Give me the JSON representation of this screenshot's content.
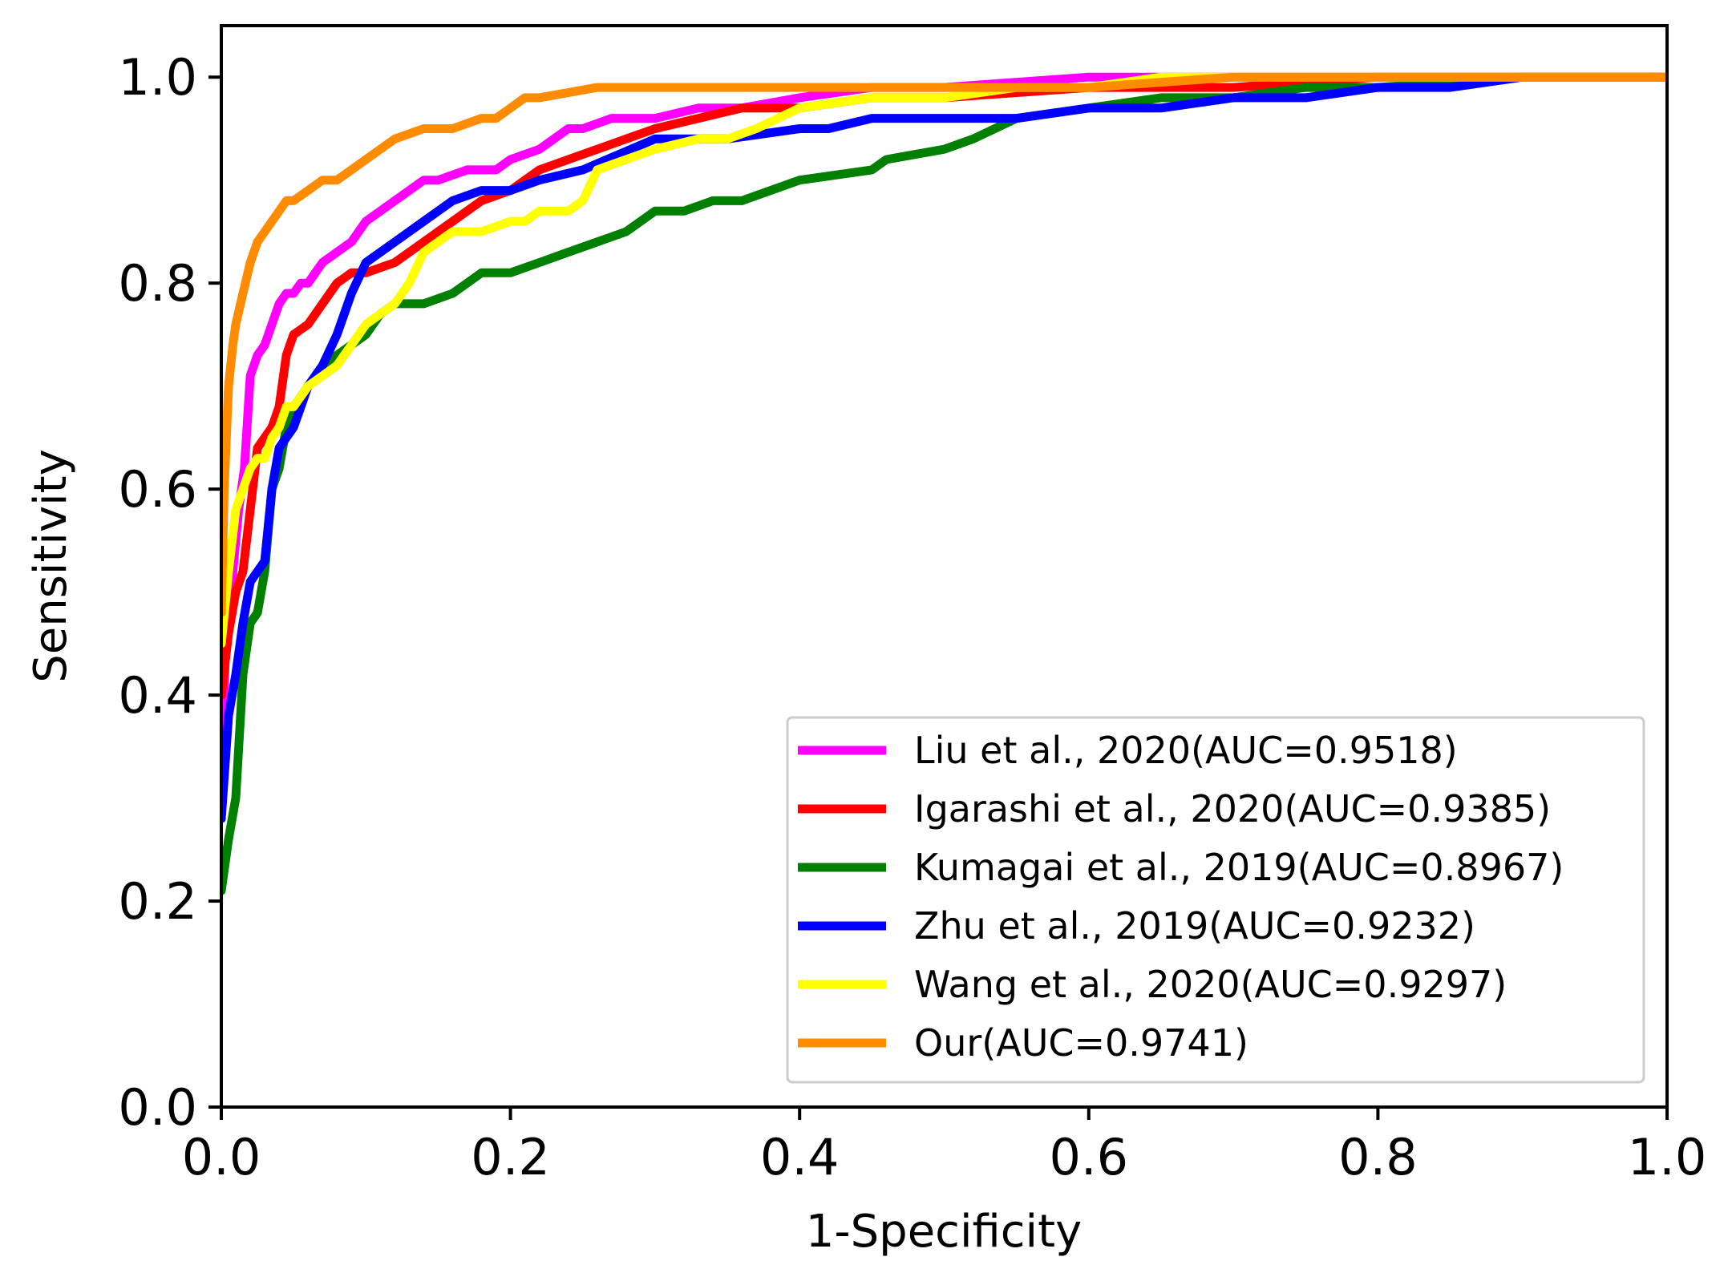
{
  "chart_data": {
    "type": "line",
    "title": "",
    "xlabel": "1-Specificity",
    "ylabel": "Sensitivity",
    "xlim": [
      0,
      1
    ],
    "ylim": [
      0,
      1.05
    ],
    "xticks": [
      "0.0",
      "0.2",
      "0.4",
      "0.6",
      "0.8",
      "1.0"
    ],
    "yticks": [
      "0.0",
      "0.2",
      "0.4",
      "0.6",
      "0.8",
      "1.0"
    ],
    "xtick_values": [
      0,
      0.2,
      0.4,
      0.6,
      0.8,
      1.0
    ],
    "ytick_values": [
      0,
      0.2,
      0.4,
      0.6,
      0.8,
      1.0
    ],
    "grid": false,
    "legend_position": "lower-right",
    "series": [
      {
        "name": "Liu et al., 2020(AUC=0.9518)",
        "color": "#ff00ff",
        "x": [
          0,
          0.003,
          0.008,
          0.012,
          0.016,
          0.02,
          0.025,
          0.03,
          0.035,
          0.04,
          0.045,
          0.05,
          0.055,
          0.06,
          0.065,
          0.07,
          0.08,
          0.09,
          0.1,
          0.11,
          0.12,
          0.13,
          0.14,
          0.15,
          0.17,
          0.19,
          0.2,
          0.22,
          0.24,
          0.25,
          0.27,
          0.3,
          0.33,
          0.36,
          0.4,
          0.45,
          0.5,
          0.6,
          0.65,
          0.7,
          0.8,
          0.9,
          1.0
        ],
        "y": [
          0.3,
          0.45,
          0.52,
          0.58,
          0.62,
          0.71,
          0.73,
          0.74,
          0.76,
          0.78,
          0.79,
          0.79,
          0.8,
          0.8,
          0.81,
          0.82,
          0.83,
          0.84,
          0.86,
          0.87,
          0.88,
          0.89,
          0.9,
          0.9,
          0.91,
          0.91,
          0.92,
          0.93,
          0.95,
          0.95,
          0.96,
          0.96,
          0.97,
          0.97,
          0.98,
          0.99,
          0.99,
          1.0,
          1.0,
          1.0,
          1.0,
          1.0,
          1.0
        ]
      },
      {
        "name": "Igarashi et al., 2020(AUC=0.9385)",
        "color": "#ff0000",
        "x": [
          0,
          0.005,
          0.01,
          0.015,
          0.02,
          0.025,
          0.03,
          0.035,
          0.04,
          0.045,
          0.05,
          0.06,
          0.07,
          0.08,
          0.09,
          0.1,
          0.12,
          0.14,
          0.16,
          0.18,
          0.2,
          0.22,
          0.24,
          0.26,
          0.28,
          0.3,
          0.33,
          0.36,
          0.4,
          0.45,
          0.5,
          0.6,
          0.7,
          0.8,
          0.9,
          1.0
        ],
        "y": [
          0.4,
          0.46,
          0.5,
          0.52,
          0.58,
          0.64,
          0.65,
          0.66,
          0.68,
          0.73,
          0.75,
          0.76,
          0.78,
          0.8,
          0.81,
          0.81,
          0.82,
          0.84,
          0.86,
          0.88,
          0.89,
          0.91,
          0.92,
          0.93,
          0.94,
          0.95,
          0.96,
          0.97,
          0.97,
          0.98,
          0.98,
          0.99,
          0.99,
          1.0,
          1.0,
          1.0
        ]
      },
      {
        "name": "Kumagai et al., 2019(AUC=0.8967)",
        "color": "#008000",
        "x": [
          0,
          0.005,
          0.01,
          0.015,
          0.02,
          0.025,
          0.03,
          0.035,
          0.04,
          0.045,
          0.05,
          0.06,
          0.07,
          0.08,
          0.09,
          0.1,
          0.11,
          0.12,
          0.14,
          0.16,
          0.17,
          0.18,
          0.2,
          0.22,
          0.24,
          0.26,
          0.28,
          0.3,
          0.32,
          0.34,
          0.36,
          0.38,
          0.4,
          0.45,
          0.46,
          0.5,
          0.52,
          0.55,
          0.6,
          0.65,
          0.7,
          0.75,
          0.8,
          0.9,
          1.0
        ],
        "y": [
          0.21,
          0.26,
          0.3,
          0.42,
          0.47,
          0.48,
          0.52,
          0.6,
          0.62,
          0.66,
          0.68,
          0.7,
          0.72,
          0.73,
          0.74,
          0.75,
          0.77,
          0.78,
          0.78,
          0.79,
          0.8,
          0.81,
          0.81,
          0.82,
          0.83,
          0.84,
          0.85,
          0.87,
          0.87,
          0.88,
          0.88,
          0.89,
          0.9,
          0.91,
          0.92,
          0.93,
          0.94,
          0.96,
          0.97,
          0.98,
          0.98,
          0.99,
          0.99,
          1.0,
          1.0
        ]
      },
      {
        "name": "Zhu et al., 2019(AUC=0.9232)",
        "color": "#0000ff",
        "x": [
          0,
          0.005,
          0.01,
          0.015,
          0.02,
          0.025,
          0.03,
          0.035,
          0.04,
          0.045,
          0.05,
          0.055,
          0.06,
          0.07,
          0.08,
          0.09,
          0.1,
          0.12,
          0.14,
          0.16,
          0.18,
          0.2,
          0.22,
          0.25,
          0.3,
          0.35,
          0.4,
          0.42,
          0.45,
          0.5,
          0.55,
          0.6,
          0.65,
          0.7,
          0.75,
          0.8,
          0.85,
          0.9,
          1.0
        ],
        "y": [
          0.28,
          0.38,
          0.42,
          0.47,
          0.51,
          0.52,
          0.53,
          0.6,
          0.64,
          0.65,
          0.66,
          0.68,
          0.7,
          0.72,
          0.75,
          0.79,
          0.82,
          0.84,
          0.86,
          0.88,
          0.89,
          0.89,
          0.9,
          0.91,
          0.94,
          0.94,
          0.95,
          0.95,
          0.96,
          0.96,
          0.96,
          0.97,
          0.97,
          0.98,
          0.98,
          0.99,
          0.99,
          1.0,
          1.0
        ]
      },
      {
        "name": "Wang et al., 2020(AUC=0.9297)",
        "color": "#ffff00",
        "x": [
          0,
          0.005,
          0.01,
          0.015,
          0.02,
          0.025,
          0.03,
          0.035,
          0.04,
          0.045,
          0.05,
          0.055,
          0.06,
          0.07,
          0.08,
          0.09,
          0.1,
          0.11,
          0.12,
          0.13,
          0.14,
          0.16,
          0.18,
          0.2,
          0.21,
          0.22,
          0.24,
          0.25,
          0.26,
          0.28,
          0.3,
          0.33,
          0.35,
          0.37,
          0.4,
          0.45,
          0.5,
          0.55,
          0.6,
          0.65,
          0.7,
          0.8,
          0.9,
          1.0
        ],
        "y": [
          0.45,
          0.52,
          0.58,
          0.6,
          0.62,
          0.63,
          0.63,
          0.65,
          0.66,
          0.68,
          0.68,
          0.69,
          0.7,
          0.71,
          0.72,
          0.74,
          0.76,
          0.77,
          0.78,
          0.8,
          0.83,
          0.85,
          0.85,
          0.86,
          0.86,
          0.87,
          0.87,
          0.88,
          0.91,
          0.92,
          0.93,
          0.94,
          0.94,
          0.95,
          0.97,
          0.98,
          0.98,
          0.99,
          0.99,
          1.0,
          1.0,
          1.0,
          1.0,
          1.0
        ]
      },
      {
        "name": "Our(AUC=0.9741)",
        "color": "#ff8c00",
        "x": [
          0,
          0.002,
          0.005,
          0.008,
          0.01,
          0.015,
          0.02,
          0.025,
          0.03,
          0.035,
          0.04,
          0.045,
          0.05,
          0.06,
          0.07,
          0.08,
          0.09,
          0.1,
          0.11,
          0.12,
          0.14,
          0.16,
          0.18,
          0.19,
          0.2,
          0.21,
          0.22,
          0.26,
          0.3,
          0.4,
          0.5,
          0.6,
          0.7,
          0.8,
          0.9,
          1.0
        ],
        "y": [
          0.48,
          0.6,
          0.7,
          0.74,
          0.76,
          0.79,
          0.82,
          0.84,
          0.85,
          0.86,
          0.87,
          0.88,
          0.88,
          0.89,
          0.9,
          0.9,
          0.91,
          0.92,
          0.93,
          0.94,
          0.95,
          0.95,
          0.96,
          0.96,
          0.97,
          0.98,
          0.98,
          0.99,
          0.99,
          0.99,
          0.99,
          0.99,
          1.0,
          1.0,
          1.0,
          1.0
        ]
      }
    ]
  }
}
